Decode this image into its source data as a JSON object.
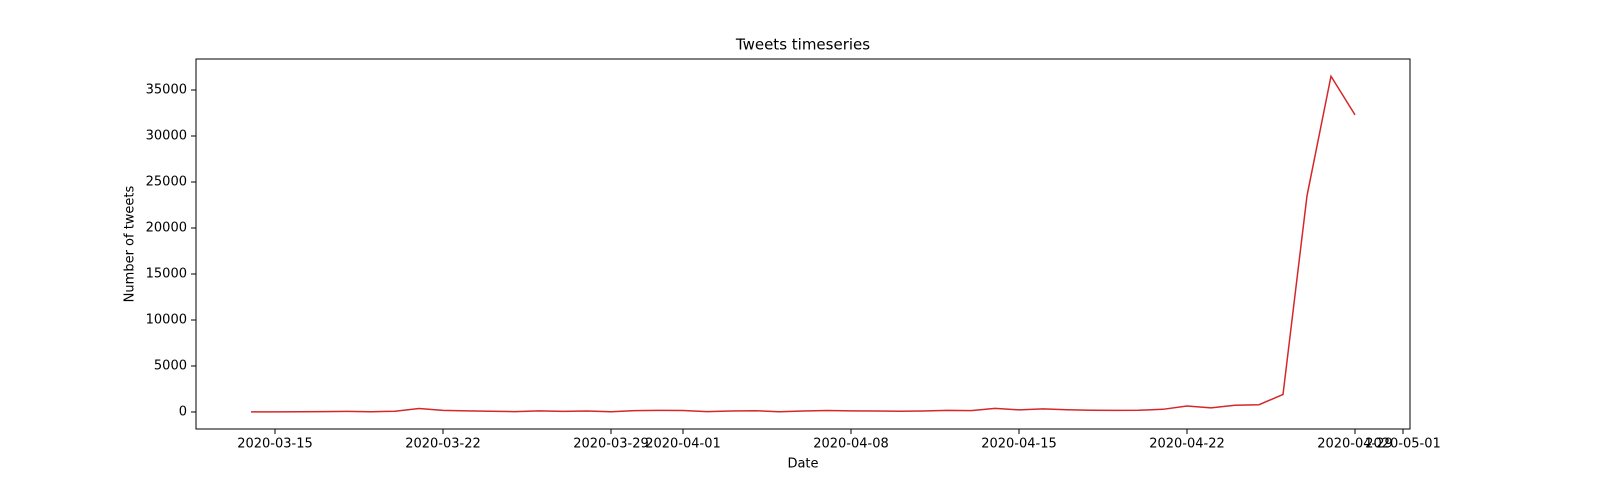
{
  "chart_data": {
    "type": "line",
    "title": "Tweets timeseries",
    "x_label": "Date",
    "y_label": "Number of tweets",
    "x": [
      "2020-03-14",
      "2020-03-15",
      "2020-03-16",
      "2020-03-17",
      "2020-03-18",
      "2020-03-19",
      "2020-03-20",
      "2020-03-21",
      "2020-03-22",
      "2020-03-23",
      "2020-03-24",
      "2020-03-25",
      "2020-03-26",
      "2020-03-27",
      "2020-03-28",
      "2020-03-29",
      "2020-03-30",
      "2020-03-31",
      "2020-04-01",
      "2020-04-02",
      "2020-04-03",
      "2020-04-04",
      "2020-04-05",
      "2020-04-06",
      "2020-04-07",
      "2020-04-08",
      "2020-04-09",
      "2020-04-10",
      "2020-04-11",
      "2020-04-12",
      "2020-04-13",
      "2020-04-14",
      "2020-04-15",
      "2020-04-16",
      "2020-04-17",
      "2020-04-18",
      "2020-04-19",
      "2020-04-20",
      "2020-04-21",
      "2020-04-22",
      "2020-04-23",
      "2020-04-24",
      "2020-04-25",
      "2020-04-26",
      "2020-04-27",
      "2020-04-28",
      "2020-04-29"
    ],
    "values": [
      10,
      15,
      20,
      40,
      60,
      30,
      80,
      380,
      180,
      120,
      80,
      40,
      120,
      60,
      110,
      30,
      150,
      170,
      160,
      40,
      100,
      140,
      30,
      100,
      160,
      120,
      100,
      80,
      110,
      170,
      150,
      390,
      230,
      340,
      240,
      190,
      170,
      190,
      290,
      650,
      450,
      730,
      790,
      1900,
      23500,
      36500,
      32300
    ],
    "color": "#d62728",
    "xlim": [
      "2020-03-11T17:00:00Z",
      "2020-05-01T07:00:00Z"
    ],
    "xticks": [
      "2020-03-15",
      "2020-03-22",
      "2020-03-29",
      "2020-04-01",
      "2020-04-08",
      "2020-04-15",
      "2020-04-22",
      "2020-04-29",
      "2020-05-01"
    ],
    "ylim": [
      -1850,
      38370
    ],
    "yticks": [
      0,
      5000,
      10000,
      15000,
      20000,
      25000,
      30000,
      35000
    ]
  }
}
